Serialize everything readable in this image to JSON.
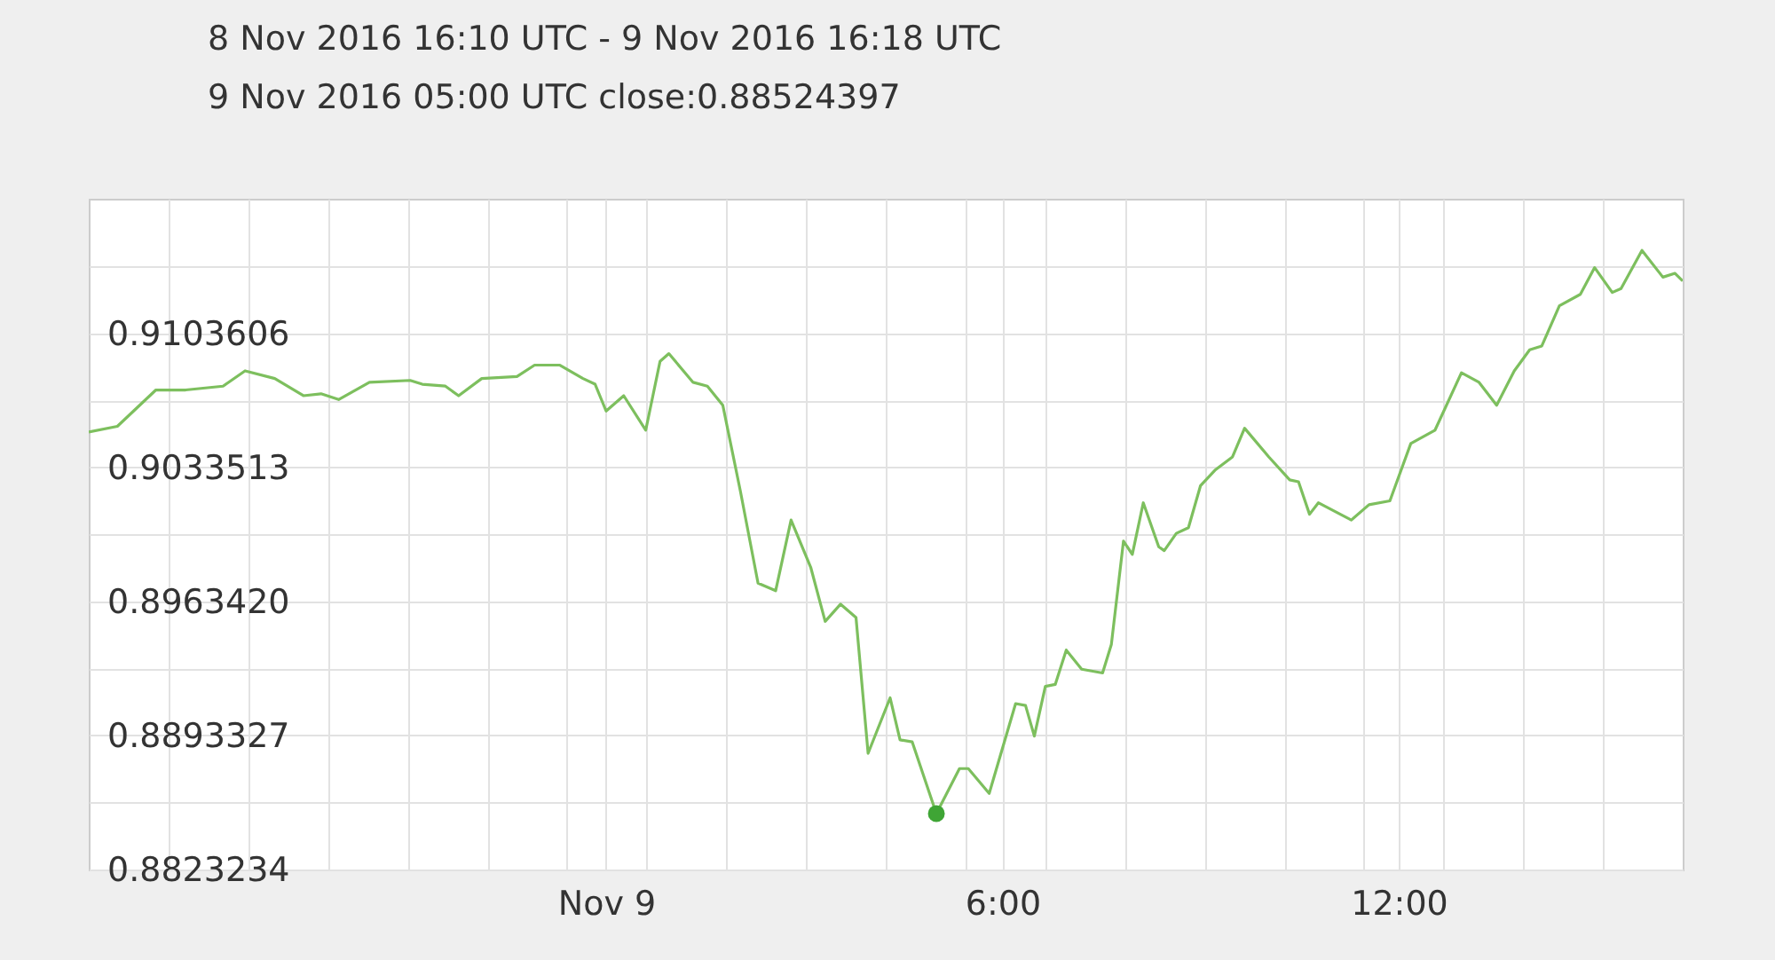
{
  "chart_data": {
    "type": "line",
    "title": "8 Nov 2016 16:10 UTC - 9 Nov 2016 16:18 UTC",
    "annotations": [
      "9 Nov 2016 05:00 UTC  close:0.88524397"
    ],
    "x": [
      "2016-11-08T16:10",
      "2016-11-08T16:36",
      "2016-11-08T17:11",
      "2016-11-08T17:38",
      "2016-11-08T18:12",
      "2016-11-08T18:32",
      "2016-11-08T18:59",
      "2016-11-08T19:25",
      "2016-11-08T19:41",
      "2016-11-08T19:57",
      "2016-11-08T20:25",
      "2016-11-08T21:02",
      "2016-11-08T21:13",
      "2016-11-08T21:34",
      "2016-11-08T21:46",
      "2016-11-08T22:07",
      "2016-11-08T22:39",
      "2016-11-08T22:55",
      "2016-11-08T23:18",
      "2016-11-08T23:39",
      "2016-11-08T23:50",
      "2016-11-09T00:00",
      "2016-11-09T00:16",
      "2016-11-09T00:36",
      "2016-11-09T00:49",
      "2016-11-09T00:57",
      "2016-11-09T01:19",
      "2016-11-09T01:32",
      "2016-11-09T01:46",
      "2016-11-09T02:02",
      "2016-11-09T02:18",
      "2016-11-09T02:34",
      "2016-11-09T02:48",
      "2016-11-09T03:06",
      "2016-11-09T03:19",
      "2016-11-09T03:33",
      "2016-11-09T03:47",
      "2016-11-09T03:58",
      "2016-11-09T04:18",
      "2016-11-09T04:27",
      "2016-11-09T04:38",
      "2016-11-09T05:00",
      "2016-11-09T05:21",
      "2016-11-09T05:29",
      "2016-11-09T05:48",
      "2016-11-09T06:12",
      "2016-11-09T06:21",
      "2016-11-09T06:29",
      "2016-11-09T06:39",
      "2016-11-09T06:48",
      "2016-11-09T06:58",
      "2016-11-09T07:12",
      "2016-11-09T07:31",
      "2016-11-09T07:39",
      "2016-11-09T07:50",
      "2016-11-09T07:58",
      "2016-11-09T08:08",
      "2016-11-09T08:22",
      "2016-11-09T08:27",
      "2016-11-09T08:38",
      "2016-11-09T08:49",
      "2016-11-09T09:00",
      "2016-11-09T09:13",
      "2016-11-09T09:29",
      "2016-11-09T09:40",
      "2016-11-09T10:02",
      "2016-11-09T10:21",
      "2016-11-09T10:29",
      "2016-11-09T10:39",
      "2016-11-09T10:47",
      "2016-11-09T11:17",
      "2016-11-09T11:33",
      "2016-11-09T11:52",
      "2016-11-09T12:11",
      "2016-11-09T12:33",
      "2016-11-09T12:57",
      "2016-11-09T13:13",
      "2016-11-09T13:29",
      "2016-11-09T13:45",
      "2016-11-09T13:59",
      "2016-11-09T14:10",
      "2016-11-09T14:26",
      "2016-11-09T14:45",
      "2016-11-09T14:58",
      "2016-11-09T15:14",
      "2016-11-09T15:22",
      "2016-11-09T15:41",
      "2016-11-09T16:00",
      "2016-11-09T16:11",
      "2016-11-09T16:18"
    ],
    "series": [
      {
        "color": "#7dbf5e",
        "values": [
          0.9052,
          0.9055,
          0.9074,
          0.9074,
          0.9076,
          0.9084,
          0.908,
          0.9071,
          0.9072,
          0.9069,
          0.9078,
          0.9079,
          0.9077,
          0.9076,
          0.9071,
          0.908,
          0.9081,
          0.9087,
          0.9087,
          0.908,
          0.9077,
          0.9063,
          0.9071,
          0.9053,
          0.9089,
          0.9093,
          0.9078,
          0.9076,
          0.9066,
          0.9021,
          0.8973,
          0.8969,
          0.9006,
          0.8981,
          0.8953,
          0.8962,
          0.8955,
          0.8884,
          0.8913,
          0.8891,
          0.889,
          0.88524397,
          0.8876,
          0.8876,
          0.8863,
          0.891,
          0.8909,
          0.8893,
          0.8919,
          0.892,
          0.8938,
          0.8928,
          0.8926,
          0.8941,
          0.8995,
          0.8988,
          0.9015,
          0.8992,
          0.899,
          0.8999,
          0.9002,
          0.9024,
          0.9032,
          0.9039,
          0.9054,
          0.9039,
          0.9027,
          0.9026,
          0.9009,
          0.9015,
          0.9006,
          0.9014,
          0.9016,
          0.9046,
          0.9053,
          0.9083,
          0.9078,
          0.9066,
          0.9084,
          0.9095,
          0.9097,
          0.9118,
          0.9124,
          0.9138,
          0.9125,
          0.9127,
          0.9147,
          0.9133,
          0.9135,
          0.9131
        ]
      },
      {
        "type": "scatter",
        "color": "#3fa535",
        "x": [
          "2016-11-09T05:00"
        ],
        "values": [
          0.88524397
        ]
      }
    ],
    "xlim": [
      "2016-11-08T16:10",
      "2016-11-09T16:18"
    ],
    "xticks": [
      {
        "value": "2016-11-08T17:22",
        "label": null
      },
      {
        "value": "2016-11-08T18:35",
        "label": null
      },
      {
        "value": "2016-11-08T19:47",
        "label": null
      },
      {
        "value": "2016-11-08T21:00",
        "label": null
      },
      {
        "value": "2016-11-08T22:12",
        "label": null
      },
      {
        "value": "2016-11-08T23:24",
        "label": null
      },
      {
        "value": "2016-11-09T00:00",
        "label": "Nov 9"
      },
      {
        "value": "2016-11-09T00:37",
        "label": null
      },
      {
        "value": "2016-11-09T01:49",
        "label": null
      },
      {
        "value": "2016-11-09T03:02",
        "label": null
      },
      {
        "value": "2016-11-09T04:14",
        "label": null
      },
      {
        "value": "2016-11-09T05:26",
        "label": null
      },
      {
        "value": "2016-11-09T06:00",
        "label": "6:00"
      },
      {
        "value": "2016-11-09T06:39",
        "label": null
      },
      {
        "value": "2016-11-09T07:51",
        "label": null
      },
      {
        "value": "2016-11-09T09:04",
        "label": null
      },
      {
        "value": "2016-11-09T10:16",
        "label": null
      },
      {
        "value": "2016-11-09T11:28",
        "label": null
      },
      {
        "value": "2016-11-09T12:00",
        "label": "12:00"
      },
      {
        "value": "2016-11-09T12:41",
        "label": null
      },
      {
        "value": "2016-11-09T13:53",
        "label": null
      },
      {
        "value": "2016-11-09T15:06",
        "label": null
      }
    ],
    "ylim": [
      0.8823234,
      0.9174
    ],
    "yticks": [
      {
        "value": 0.8823234,
        "label": "0.8823234"
      },
      {
        "value": 0.885828,
        "label": null
      },
      {
        "value": 0.8893327,
        "label": "0.8893327"
      },
      {
        "value": 0.8928373,
        "label": null
      },
      {
        "value": 0.896342,
        "label": "0.8963420"
      },
      {
        "value": 0.8998467,
        "label": null
      },
      {
        "value": 0.9033513,
        "label": "0.9033513"
      },
      {
        "value": 0.906856,
        "label": null
      },
      {
        "value": 0.9103606,
        "label": "0.9103606"
      },
      {
        "value": 0.9138653,
        "label": null
      }
    ],
    "grid": true
  }
}
